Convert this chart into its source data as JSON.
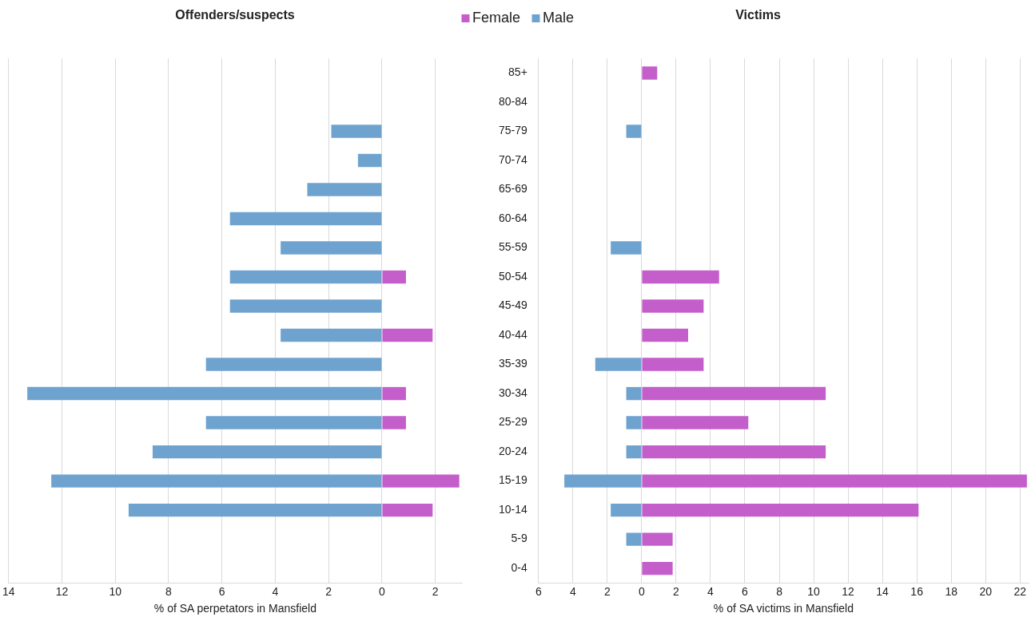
{
  "chart_data": [
    {
      "type": "bar",
      "title": "Offenders/suspects",
      "xlabel": "% of SA perpetators in Mansfield",
      "orientation": "horizontal",
      "stacked": true,
      "categories": [
        null,
        null,
        null,
        null,
        null,
        null,
        null,
        null,
        null,
        null,
        null,
        null,
        null,
        null,
        null,
        null,
        null,
        null
      ],
      "series": [
        {
          "name": "Female",
          "color": "#c45ecb",
          "values": [
            null,
            null,
            null,
            null,
            null,
            null,
            null,
            0.9,
            null,
            1.9,
            null,
            0.9,
            0.9,
            null,
            2.9,
            1.9,
            null,
            null
          ]
        },
        {
          "name": "Male",
          "color": "#6fa3cf",
          "values": [
            null,
            null,
            -1.9,
            -0.9,
            -2.8,
            -5.7,
            -3.8,
            -5.7,
            -5.7,
            -3.8,
            -6.6,
            -13.3,
            -6.6,
            -8.6,
            -12.4,
            -9.5,
            null,
            null
          ]
        }
      ],
      "xlim": [
        -14,
        3
      ],
      "xticks": [
        {
          "value": -14,
          "label": "14"
        },
        {
          "value": -12,
          "label": "12"
        },
        {
          "value": -10,
          "label": "10"
        },
        {
          "value": -8,
          "label": "8"
        },
        {
          "value": -6,
          "label": "6"
        },
        {
          "value": -4,
          "label": "4"
        },
        {
          "value": -2,
          "label": "2"
        },
        0,
        2
      ],
      "grid": "x",
      "legend": "top",
      "tick_labels": "x"
    },
    {
      "type": "bar",
      "title": "Victims",
      "xlabel": "% of SA victims in Mansfield",
      "orientation": "horizontal",
      "stacked": true,
      "categories": [
        "85+",
        "80-84",
        "75-79",
        "70-74",
        "65-69",
        "60-64",
        "55-59",
        "50-54",
        "45-49",
        "40-44",
        "35-39",
        "30-34",
        "25-29",
        "20-24",
        "15-19",
        "10-14",
        "5-9",
        "0-4"
      ],
      "series": [
        {
          "color": "#c45ecb",
          "values": [
            0.9,
            null,
            null,
            null,
            null,
            null,
            null,
            4.5,
            3.6,
            2.7,
            3.6,
            10.7,
            6.2,
            10.7,
            22.4,
            16.1,
            1.8,
            1.8
          ]
        },
        {
          "color": "#6fa3cf",
          "values": [
            null,
            null,
            -0.9,
            null,
            null,
            null,
            -1.8,
            null,
            null,
            null,
            -2.7,
            -0.9,
            -0.9,
            -0.9,
            -4.5,
            -1.8,
            -0.9,
            null
          ]
        }
      ],
      "xlim": [
        -6,
        22.5
      ],
      "xticks": [
        {
          "value": -6,
          "label": "6"
        },
        {
          "value": -4,
          "label": "4"
        },
        {
          "value": -2,
          "label": "2"
        },
        0,
        2,
        4,
        6,
        8,
        10,
        12,
        14,
        16,
        18,
        20,
        22
      ],
      "grid": "x"
    }
  ]
}
